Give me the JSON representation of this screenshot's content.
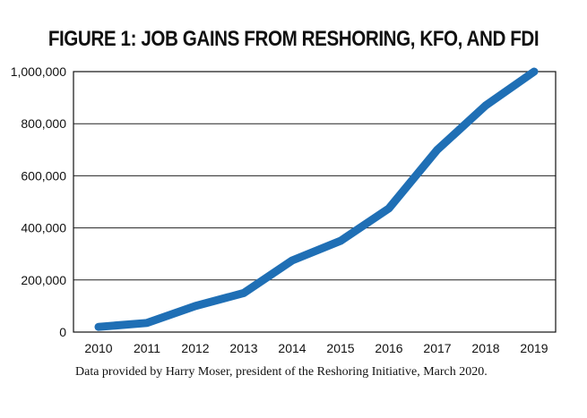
{
  "chart_data": {
    "type": "line",
    "title": "FIGURE 1: JOB GAINS FROM RESHORING, KFO, AND FDI",
    "xlabel": "",
    "ylabel": "",
    "x": [
      "2010",
      "2011",
      "2012",
      "2013",
      "2014",
      "2015",
      "2016",
      "2017",
      "2018",
      "2019"
    ],
    "series": [
      {
        "values": [
          20000,
          35000,
          100000,
          150000,
          275000,
          350000,
          475000,
          700000,
          870000,
          1000000
        ]
      }
    ],
    "ylim": [
      0,
      1000000
    ],
    "yticks": [
      0,
      200000,
      400000,
      600000,
      800000,
      1000000
    ],
    "ytick_labels": [
      "0",
      "200,000",
      "400,000",
      "600,000",
      "800,000",
      "1,000,000"
    ],
    "grid": true,
    "line_color": "#1f6fb5",
    "caption": "Data provided by Harry Moser, president of the Reshoring Initiative, March 2020."
  }
}
